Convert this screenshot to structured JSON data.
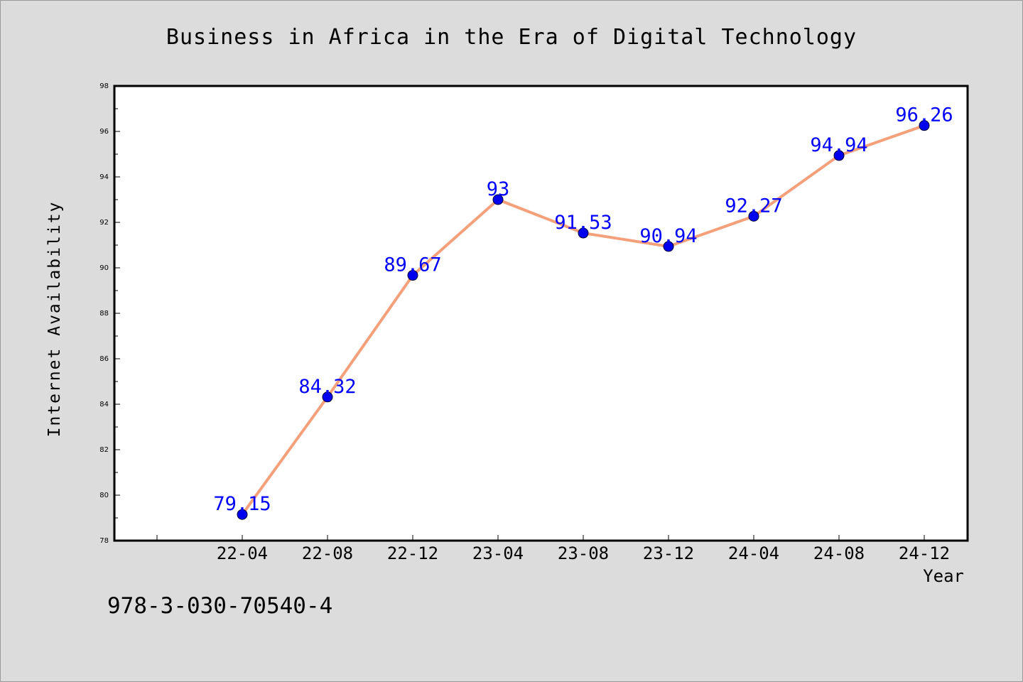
{
  "chart_data": {
    "type": "line",
    "title": "Business in Africa in the Era of Digital Technology",
    "xlabel": "Year",
    "ylabel": "Internet Availability",
    "categories": [
      "22-04",
      "22-08",
      "22-12",
      "23-04",
      "23-08",
      "23-12",
      "24-04",
      "24-08",
      "24-12"
    ],
    "series": [
      {
        "values": [
          79.15,
          84.32,
          89.67,
          93,
          91.53,
          90.94,
          92.27,
          94.94,
          96.26
        ],
        "labels": [
          "79.15",
          "84.32",
          "89.67",
          "93",
          "91.53",
          "90.94",
          "92.27",
          "94.94",
          "96.26"
        ]
      }
    ],
    "ylim": [
      78,
      98
    ],
    "yticks": [
      78,
      80,
      82,
      84,
      86,
      88,
      90,
      92,
      94,
      96,
      98
    ],
    "grid": false,
    "legend": "none",
    "colors": {
      "line": "#f4a07a",
      "marker": "#0000ee",
      "data_label": "#0000ff",
      "background": "#dcdcdc",
      "plot_background": "#ffffff"
    }
  },
  "footer_text": "978-3-030-70540-4"
}
